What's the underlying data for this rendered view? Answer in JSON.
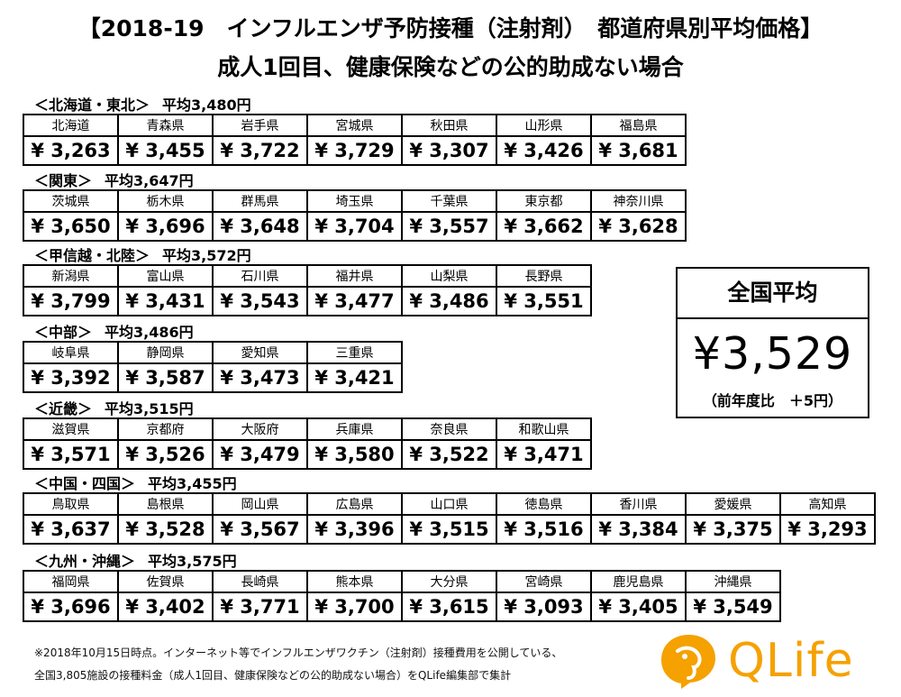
{
  "header": {
    "title_line1": "【2018-19　インフルエンザ予防接種（注射剤）　都道府県別平均価格】",
    "title_line2": "成人1回目、健康保険などの公的助成ない場合"
  },
  "regions": [
    {
      "label": "＜北海道・東北＞",
      "average": "平均3,480円",
      "prefectures": [
        {
          "name": "北海道",
          "price": "¥ 3,263"
        },
        {
          "name": "青森県",
          "price": "¥ 3,455"
        },
        {
          "name": "岩手県",
          "price": "¥ 3,722"
        },
        {
          "name": "宮城県",
          "price": "¥ 3,729"
        },
        {
          "name": "秋田県",
          "price": "¥ 3,307"
        },
        {
          "name": "山形県",
          "price": "¥ 3,426"
        },
        {
          "name": "福島県",
          "price": "¥ 3,681"
        }
      ]
    },
    {
      "label": "＜関東＞",
      "average": "平均3,647円",
      "prefectures": [
        {
          "name": "茨城県",
          "price": "¥ 3,650"
        },
        {
          "name": "栃木県",
          "price": "¥ 3,696"
        },
        {
          "name": "群馬県",
          "price": "¥ 3,648"
        },
        {
          "name": "埼玉県",
          "price": "¥ 3,704"
        },
        {
          "name": "千葉県",
          "price": "¥ 3,557"
        },
        {
          "name": "東京都",
          "price": "¥ 3,662"
        },
        {
          "name": "神奈川県",
          "price": "¥ 3,628"
        }
      ]
    },
    {
      "label": "＜甲信越・北陸＞",
      "average": "平均3,572円",
      "prefectures": [
        {
          "name": "新潟県",
          "price": "¥ 3,799"
        },
        {
          "name": "富山県",
          "price": "¥ 3,431"
        },
        {
          "name": "石川県",
          "price": "¥ 3,543"
        },
        {
          "name": "福井県",
          "price": "¥ 3,477"
        },
        {
          "name": "山梨県",
          "price": "¥ 3,486"
        },
        {
          "name": "長野県",
          "price": "¥ 3,551"
        }
      ]
    },
    {
      "label": "＜中部＞",
      "average": "平均3,486円",
      "prefectures": [
        {
          "name": "岐阜県",
          "price": "¥ 3,392"
        },
        {
          "name": "静岡県",
          "price": "¥ 3,587"
        },
        {
          "name": "愛知県",
          "price": "¥ 3,473"
        },
        {
          "name": "三重県",
          "price": "¥ 3,421"
        }
      ]
    },
    {
      "label": "＜近畿＞",
      "average": "平均3,515円",
      "prefectures": [
        {
          "name": "滋賀県",
          "price": "¥ 3,571"
        },
        {
          "name": "京都府",
          "price": "¥ 3,526"
        },
        {
          "name": "大阪府",
          "price": "¥ 3,479"
        },
        {
          "name": "兵庫県",
          "price": "¥ 3,580"
        },
        {
          "name": "奈良県",
          "price": "¥ 3,522"
        },
        {
          "name": "和歌山県",
          "price": "¥ 3,471"
        }
      ]
    },
    {
      "label": "＜中国・四国＞",
      "average": "平均3,455円",
      "prefectures": [
        {
          "name": "鳥取県",
          "price": "¥ 3,637"
        },
        {
          "name": "島根県",
          "price": "¥ 3,528"
        },
        {
          "name": "岡山県",
          "price": "¥ 3,567"
        },
        {
          "name": "広島県",
          "price": "¥ 3,396"
        },
        {
          "name": "山口県",
          "price": "¥ 3,515"
        },
        {
          "name": "徳島県",
          "price": "¥ 3,516"
        },
        {
          "name": "香川県",
          "price": "¥ 3,384"
        },
        {
          "name": "愛媛県",
          "price": "¥ 3,375"
        },
        {
          "name": "高知県",
          "price": "¥ 3,293"
        }
      ]
    },
    {
      "label": "＜九州・沖縄＞",
      "average": "平均3,575円",
      "prefectures": [
        {
          "name": "福岡県",
          "price": "¥ 3,696"
        },
        {
          "name": "佐賀県",
          "price": "¥ 3,402"
        },
        {
          "name": "長崎県",
          "price": "¥ 3,771"
        },
        {
          "name": "熊本県",
          "price": "¥ 3,700"
        },
        {
          "name": "大分県",
          "price": "¥ 3,615"
        },
        {
          "name": "宮崎県",
          "price": "¥ 3,093"
        },
        {
          "name": "鹿児島県",
          "price": "¥ 3,405"
        },
        {
          "name": "沖縄県",
          "price": "¥ 3,549"
        }
      ]
    }
  ],
  "national": {
    "label": "全国平均",
    "value": "¥3,529",
    "change": "（前年度比　＋5円）"
  },
  "footnote": {
    "line1": "※2018年10月15日時点。インターネット等でインフルエンザワクチン（注射剤）接種費用を公開している、",
    "line2": "全国3,805施設の接種料金（成人1回目、健康保険などの公的助成ない場合）をQLife編集部で集計"
  },
  "logo": {
    "text": "QLife",
    "color": "#f5a100",
    "icon": "elephant-icon"
  }
}
